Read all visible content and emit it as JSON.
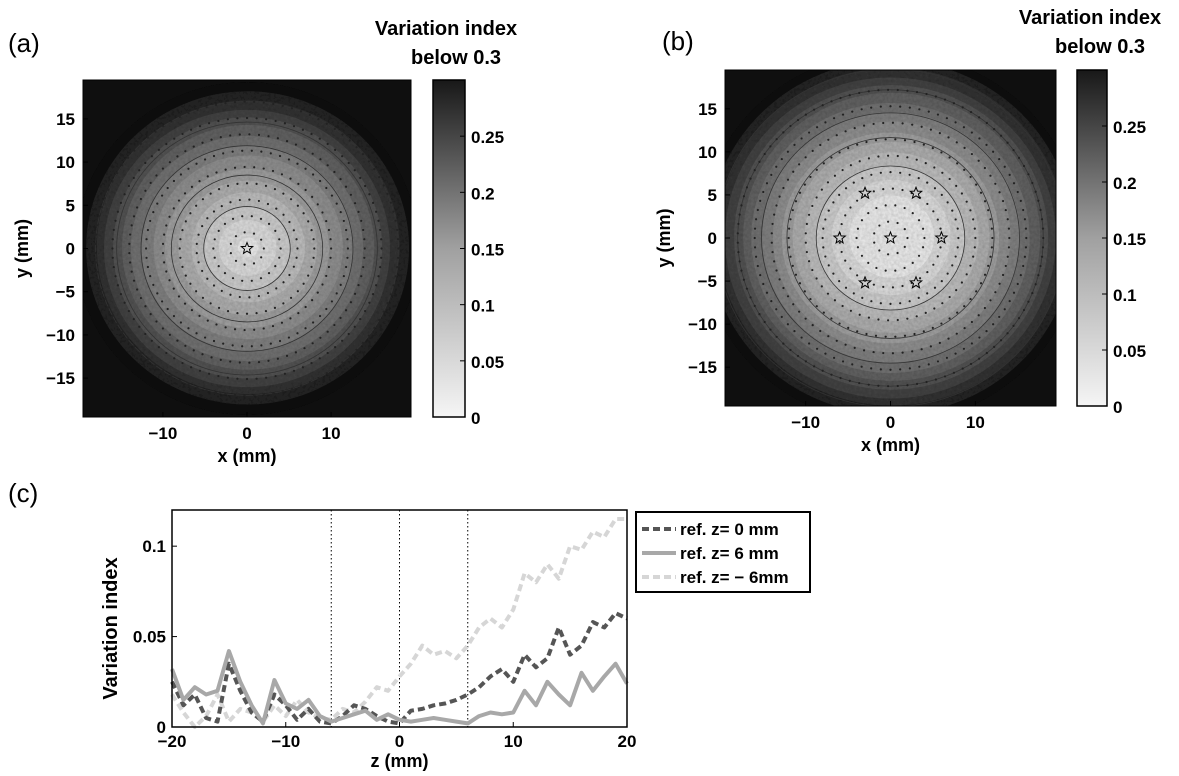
{
  "panels": {
    "a": {
      "label": "(a)"
    },
    "b": {
      "label": "(b)"
    },
    "c": {
      "label": "(c)"
    }
  },
  "chart_data": [
    {
      "type": "heatmap",
      "panel": "(a)",
      "colorbar_title": [
        "Variation index",
        "below 0.3"
      ],
      "xlabel": "x (mm)",
      "ylabel": "y (mm)",
      "xlim": [
        -19.5,
        19.5
      ],
      "ylim": [
        -19.5,
        19.5
      ],
      "xticks": [
        -10,
        0,
        10
      ],
      "xtick_labels": [
        "−10",
        "0",
        "10"
      ],
      "yticks": [
        -15,
        -10,
        -5,
        0,
        5,
        10,
        15
      ],
      "ytick_labels": [
        "−15",
        "−10",
        "−5",
        "0",
        "5",
        "10",
        "15"
      ],
      "colorbar_range": [
        0,
        0.3
      ],
      "colorbar_ticks": [
        0,
        0.05,
        0.1,
        0.15,
        0.2,
        0.25
      ],
      "colorbar_tick_labels": [
        "0",
        "0.05",
        "0.1",
        "0.15",
        "0.2",
        "0.25"
      ],
      "colormap": "gray-reversed",
      "reference_points": [
        [
          0,
          0
        ]
      ],
      "contour_levels": [
        0.05,
        0.1,
        0.15,
        0.2,
        0.25
      ],
      "radial_profile": {
        "r": [
          0,
          3,
          6,
          9,
          12,
          15,
          18,
          21
        ],
        "value": [
          0.0,
          0.025,
          0.06,
          0.1,
          0.14,
          0.19,
          0.25,
          0.3
        ]
      }
    },
    {
      "type": "heatmap",
      "panel": "(b)",
      "colorbar_title": [
        "Variation index",
        "below 0.3"
      ],
      "xlabel": "x (mm)",
      "ylabel": "y (mm)",
      "xlim": [
        -19.5,
        19.5
      ],
      "ylim": [
        -19.5,
        19.5
      ],
      "xticks": [
        -10,
        0,
        10
      ],
      "xtick_labels": [
        "−10",
        "0",
        "10"
      ],
      "yticks": [
        -15,
        -10,
        -5,
        0,
        5,
        10,
        15
      ],
      "ytick_labels": [
        "−15",
        "−10",
        "−5",
        "0",
        "5",
        "10",
        "15"
      ],
      "colorbar_range": [
        0,
        0.3
      ],
      "colorbar_ticks": [
        0,
        0.05,
        0.1,
        0.15,
        0.2,
        0.25
      ],
      "colorbar_tick_labels": [
        "0",
        "0.05",
        "0.1",
        "0.15",
        "0.2",
        "0.25"
      ],
      "colormap": "gray-reversed",
      "reference_points": [
        [
          0,
          0
        ],
        [
          -6,
          0
        ],
        [
          6,
          0
        ],
        [
          -3,
          5.2
        ],
        [
          3,
          5.2
        ],
        [
          -3,
          -5.2
        ],
        [
          3,
          -5.2
        ]
      ],
      "contour_levels": [
        0.05,
        0.1,
        0.15,
        0.2,
        0.25
      ],
      "radial_profile": {
        "r": [
          0,
          5,
          8,
          11,
          14,
          17,
          20,
          23
        ],
        "value": [
          0.0,
          0.01,
          0.04,
          0.08,
          0.13,
          0.18,
          0.24,
          0.3
        ]
      }
    },
    {
      "type": "line",
      "panel": "(c)",
      "xlabel": "z (mm)",
      "ylabel": "Variation index",
      "xlim": [
        -20,
        20
      ],
      "ylim": [
        0,
        0.12
      ],
      "xticks": [
        -20,
        -10,
        0,
        10,
        20
      ],
      "xtick_labels": [
        "−20",
        "−10",
        "0",
        "10",
        "20"
      ],
      "yticks": [
        0,
        0.05,
        0.1
      ],
      "ytick_labels": [
        "0",
        "0.05",
        "0.1"
      ],
      "vlines": [
        -6,
        0,
        6
      ],
      "legend_position": "outside-right-top",
      "series": [
        {
          "name": "ref. z= 0 mm",
          "color": "#555555",
          "style": "dashed",
          "x": [
            -20,
            -19,
            -18,
            -17,
            -16,
            -15,
            -14,
            -13,
            -12,
            -11,
            -10,
            -9,
            -8,
            -7,
            -6,
            -5,
            -4,
            -3,
            -2,
            -1,
            0,
            1,
            2,
            3,
            4,
            5,
            6,
            7,
            8,
            9,
            10,
            11,
            12,
            13,
            14,
            15,
            16,
            17,
            18,
            19,
            20
          ],
          "y": [
            0.025,
            0.012,
            0.018,
            0.005,
            0.003,
            0.035,
            0.02,
            0.008,
            0.003,
            0.018,
            0.012,
            0.004,
            0.01,
            0.003,
            0.002,
            0.006,
            0.012,
            0.01,
            0.006,
            0.003,
            0.002,
            0.009,
            0.01,
            0.012,
            0.013,
            0.015,
            0.018,
            0.022,
            0.028,
            0.032,
            0.025,
            0.04,
            0.033,
            0.038,
            0.055,
            0.04,
            0.045,
            0.058,
            0.055,
            0.063,
            0.06
          ]
        },
        {
          "name": "ref. z= 6 mm",
          "color": "#a8a8a8",
          "style": "solid",
          "x": [
            -20,
            -19,
            -18,
            -17,
            -16,
            -15,
            -14,
            -13,
            -12,
            -11,
            -10,
            -9,
            -8,
            -7,
            -6,
            -5,
            -4,
            -3,
            -2,
            -1,
            0,
            1,
            2,
            3,
            4,
            5,
            6,
            7,
            8,
            9,
            10,
            11,
            12,
            13,
            14,
            15,
            16,
            17,
            18,
            19,
            20
          ],
          "y": [
            0.032,
            0.015,
            0.022,
            0.018,
            0.02,
            0.042,
            0.025,
            0.012,
            0.002,
            0.026,
            0.013,
            0.01,
            0.015,
            0.006,
            0.003,
            0.005,
            0.007,
            0.009,
            0.004,
            0.007,
            0.004,
            0.003,
            0.004,
            0.005,
            0.004,
            0.003,
            0.002,
            0.006,
            0.008,
            0.007,
            0.008,
            0.02,
            0.012,
            0.025,
            0.018,
            0.012,
            0.03,
            0.02,
            0.028,
            0.035,
            0.024
          ]
        },
        {
          "name": "ref. z= − 6mm",
          "color": "#d6d6d6",
          "style": "dashed",
          "x": [
            -20,
            -19,
            -18,
            -17,
            -16,
            -15,
            -14,
            -13,
            -12,
            -11,
            -10,
            -9,
            -8,
            -7,
            -6,
            -5,
            -4,
            -3,
            -2,
            -1,
            0,
            1,
            2,
            3,
            4,
            5,
            6,
            7,
            8,
            9,
            10,
            11,
            12,
            13,
            14,
            15,
            16,
            17,
            18,
            19,
            20
          ],
          "y": [
            0.018,
            0.008,
            0.0,
            0.006,
            0.018,
            0.003,
            0.01,
            0.008,
            0.003,
            0.012,
            0.006,
            0.015,
            0.008,
            0.005,
            0.004,
            0.01,
            0.008,
            0.014,
            0.022,
            0.02,
            0.028,
            0.035,
            0.045,
            0.04,
            0.042,
            0.038,
            0.045,
            0.055,
            0.06,
            0.055,
            0.065,
            0.085,
            0.08,
            0.09,
            0.082,
            0.1,
            0.098,
            0.108,
            0.105,
            0.115,
            0.115
          ]
        }
      ]
    }
  ]
}
